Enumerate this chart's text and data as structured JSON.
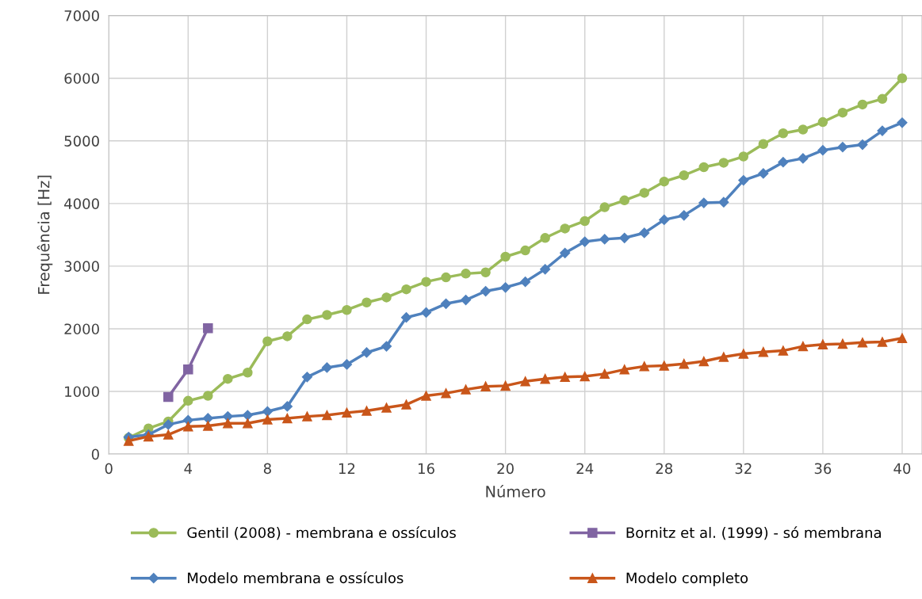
{
  "chart_data": {
    "type": "line",
    "xlabel": "Número",
    "ylabel": "Frequência [Hz]",
    "xlim": [
      0,
      41
    ],
    "xticks": [
      0,
      4,
      8,
      12,
      16,
      20,
      24,
      28,
      32,
      36,
      40
    ],
    "ylim": [
      0,
      7000
    ],
    "yticks": [
      0,
      1000,
      2000,
      3000,
      4000,
      5000,
      6000,
      7000
    ],
    "grid": true,
    "legend": "bottom",
    "series": [
      {
        "name": "Gentil (2008) - membrana e ossículos",
        "color": "#9bbb59",
        "marker": "circle",
        "x": [
          1,
          2,
          3,
          4,
          5,
          6,
          7,
          8,
          9,
          10,
          11,
          12,
          13,
          14,
          15,
          16,
          17,
          18,
          19,
          20,
          21,
          22,
          23,
          24,
          25,
          26,
          27,
          28,
          29,
          30,
          31,
          32,
          33,
          34,
          35,
          36,
          37,
          38,
          39,
          40
        ],
        "values": [
          260,
          410,
          520,
          850,
          930,
          1200,
          1300,
          1800,
          1880,
          2150,
          2220,
          2300,
          2420,
          2500,
          2630,
          2750,
          2820,
          2880,
          2900,
          3150,
          3250,
          3450,
          3600,
          3720,
          3940,
          4050,
          4170,
          4350,
          4450,
          4580,
          4650,
          4750,
          4950,
          5120,
          5180,
          5300,
          5450,
          5580,
          5670,
          6000
        ]
      },
      {
        "name": "Bornitz et al. (1999) - só membrana",
        "color": "#8064a2",
        "marker": "square",
        "x": [
          3,
          4,
          5
        ],
        "values": [
          910,
          1350,
          2010
        ]
      },
      {
        "name": "Modelo membrana e ossículos",
        "color": "#4f81bd",
        "marker": "diamond",
        "x": [
          1,
          2,
          3,
          4,
          5,
          6,
          7,
          8,
          9,
          10,
          11,
          12,
          13,
          14,
          15,
          16,
          17,
          18,
          19,
          20,
          21,
          22,
          23,
          24,
          25,
          26,
          27,
          28,
          29,
          30,
          31,
          32,
          33,
          34,
          35,
          36,
          37,
          38,
          39,
          40
        ],
        "values": [
          270,
          310,
          470,
          540,
          570,
          600,
          620,
          680,
          760,
          1230,
          1380,
          1430,
          1620,
          1720,
          2180,
          2260,
          2400,
          2460,
          2600,
          2660,
          2750,
          2950,
          3210,
          3390,
          3430,
          3450,
          3530,
          3740,
          3810,
          4010,
          4020,
          4370,
          4480,
          4660,
          4720,
          4850,
          4900,
          4940,
          5160,
          5290
        ]
      },
      {
        "name": "Modelo completo",
        "color": "#c9561a",
        "marker": "triangle",
        "x": [
          1,
          2,
          3,
          4,
          5,
          6,
          7,
          8,
          9,
          10,
          11,
          12,
          13,
          14,
          15,
          16,
          17,
          18,
          19,
          20,
          21,
          22,
          23,
          24,
          25,
          26,
          27,
          28,
          29,
          30,
          31,
          32,
          33,
          34,
          35,
          36,
          37,
          38,
          39,
          40
        ],
        "values": [
          210,
          280,
          310,
          440,
          450,
          490,
          490,
          550,
          570,
          600,
          620,
          660,
          690,
          740,
          790,
          930,
          970,
          1030,
          1080,
          1090,
          1160,
          1200,
          1230,
          1240,
          1280,
          1350,
          1400,
          1410,
          1440,
          1480,
          1550,
          1600,
          1630,
          1650,
          1720,
          1750,
          1760,
          1780,
          1790,
          1850
        ]
      }
    ]
  }
}
